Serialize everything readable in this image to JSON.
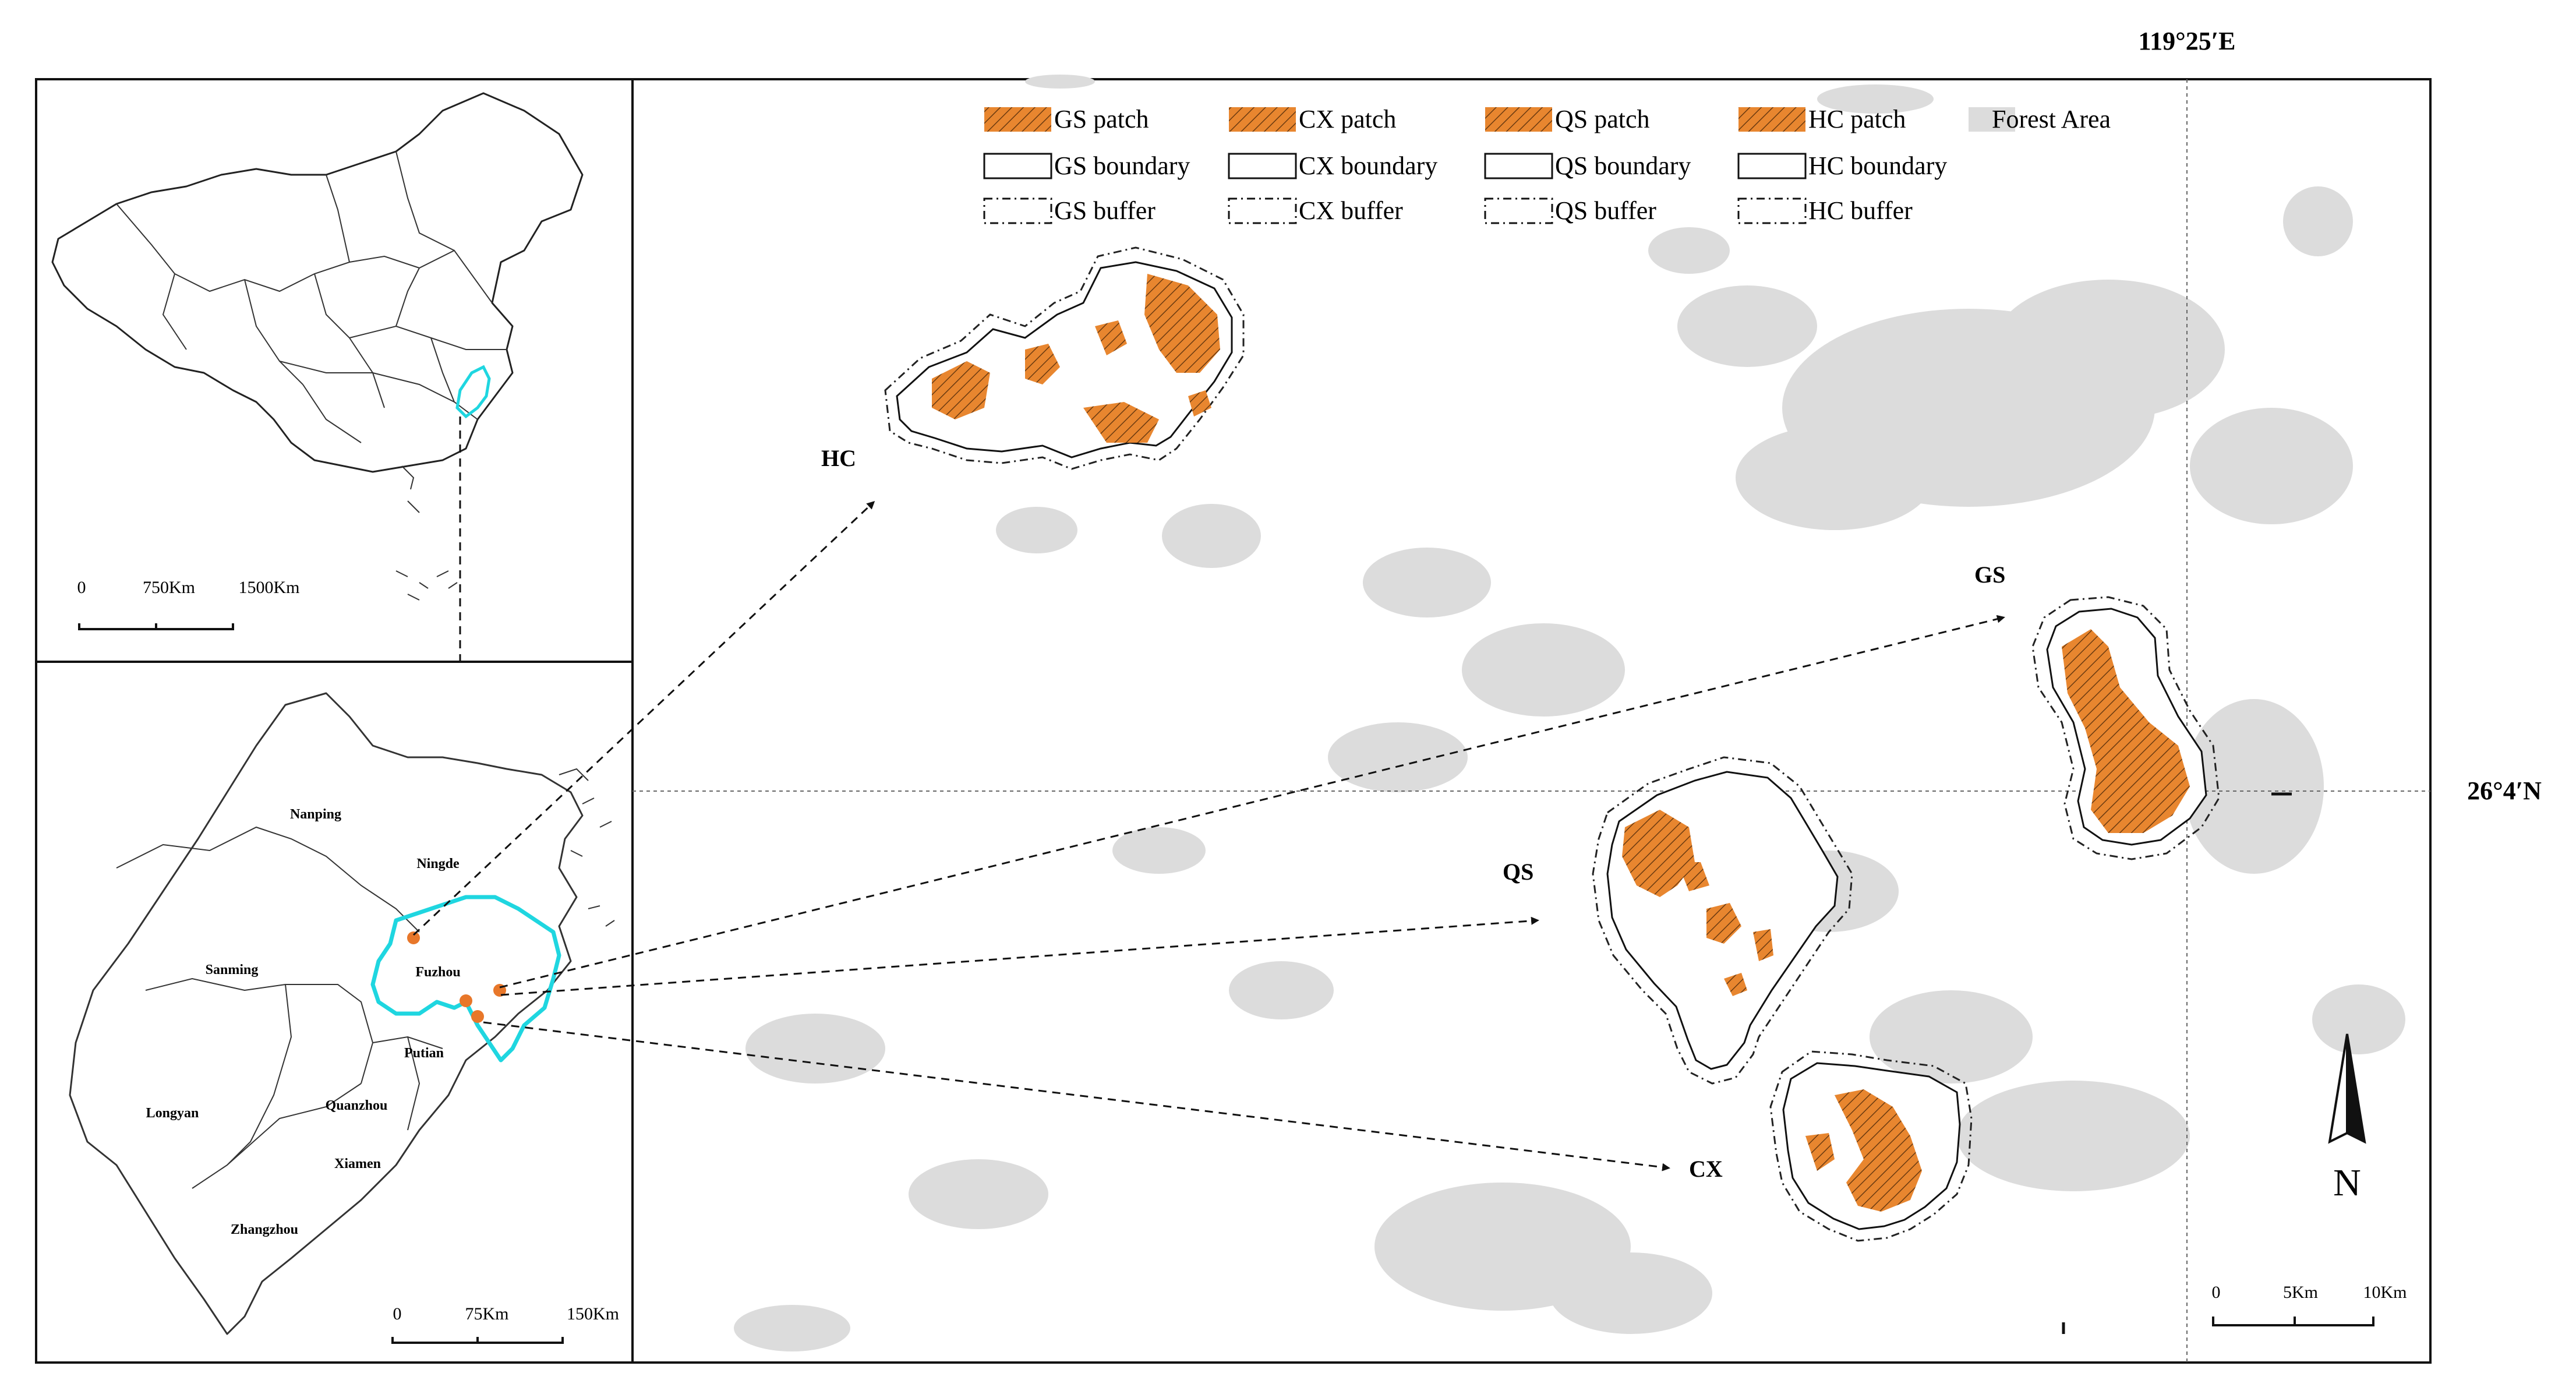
{
  "coordinates": {
    "longitude_label": "119°25′E",
    "latitude_label": "26°4′N"
  },
  "legend": {
    "rows": [
      [
        {
          "key": "gs-patch",
          "label": "GS patch",
          "swatch": "patch"
        },
        {
          "key": "cx-patch",
          "label": "CX patch",
          "swatch": "patch"
        },
        {
          "key": "qs-patch",
          "label": "QS patch",
          "swatch": "patch"
        },
        {
          "key": "hc-patch",
          "label": "HC patch",
          "swatch": "patch"
        },
        {
          "key": "forest-area",
          "label": "Forest Area",
          "swatch": "forest"
        }
      ],
      [
        {
          "key": "gs-boundary",
          "label": "GS boundary",
          "swatch": "boundary"
        },
        {
          "key": "cx-boundary",
          "label": "CX boundary",
          "swatch": "boundary"
        },
        {
          "key": "qs-boundary",
          "label": "QS boundary",
          "swatch": "boundary"
        },
        {
          "key": "hc-boundary",
          "label": "HC boundary",
          "swatch": "boundary"
        }
      ],
      [
        {
          "key": "gs-buffer",
          "label": "GS buffer",
          "swatch": "buffer"
        },
        {
          "key": "cx-buffer",
          "label": "CX buffer",
          "swatch": "buffer"
        },
        {
          "key": "qs-buffer",
          "label": "QS buffer",
          "swatch": "buffer"
        },
        {
          "key": "hc-buffer",
          "label": "HC buffer",
          "swatch": "buffer"
        }
      ]
    ]
  },
  "site_labels": {
    "hc": "HC",
    "gs": "GS",
    "qs": "QS",
    "cx": "CX"
  },
  "north_arrow": "N",
  "scalebars": {
    "china": {
      "ticks": [
        "0",
        "750Km",
        "1500Km"
      ]
    },
    "fujian": {
      "ticks": [
        "0",
        "75Km",
        "150Km"
      ]
    },
    "main": {
      "ticks": [
        "0",
        "5Km",
        "10Km"
      ]
    }
  },
  "cities": {
    "nanping": "Nanping",
    "ningde": "Ningde",
    "sanming": "Sanming",
    "fuzhou": "Fuzhou",
    "putian": "Putian",
    "longyan": "Longyan",
    "quanzhou": "Quanzhou",
    "xiamen": "Xiamen",
    "zhangzhou": "Zhangzhou"
  },
  "colors": {
    "patch": "#e8862f",
    "forest": "#dcdcdc",
    "highlight": "#1fd6e0",
    "site_dot": "#e8772a"
  }
}
